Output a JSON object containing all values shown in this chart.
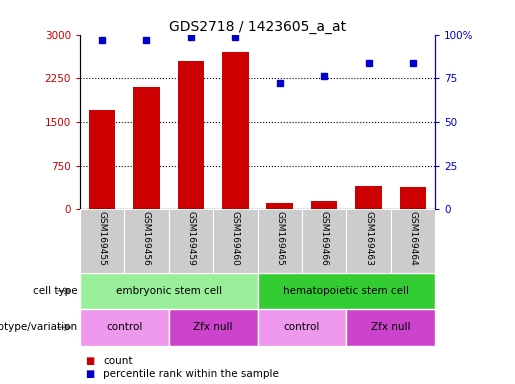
{
  "title": "GDS2718 / 1423605_a_at",
  "samples": [
    "GSM169455",
    "GSM169456",
    "GSM169459",
    "GSM169460",
    "GSM169465",
    "GSM169466",
    "GSM169463",
    "GSM169464"
  ],
  "counts": [
    1700,
    2100,
    2550,
    2700,
    100,
    150,
    400,
    390
  ],
  "percentiles": [
    97,
    97,
    98.5,
    98.5,
    72,
    76,
    84,
    84
  ],
  "ylim_left": [
    0,
    3000
  ],
  "ylim_right": [
    0,
    100
  ],
  "yticks_left": [
    0,
    750,
    1500,
    2250,
    3000
  ],
  "yticks_right": [
    0,
    25,
    50,
    75,
    100
  ],
  "ytick_labels_left": [
    "0",
    "750",
    "1500",
    "2250",
    "3000"
  ],
  "ytick_labels_right": [
    "0",
    "25",
    "50",
    "75",
    "100%"
  ],
  "bar_color": "#cc0000",
  "dot_color": "#0000cc",
  "cell_type_groups": [
    {
      "label": "embryonic stem cell",
      "start": 0,
      "end": 4,
      "color": "#99ee99"
    },
    {
      "label": "hematopoietic stem cell",
      "start": 4,
      "end": 8,
      "color": "#33cc33"
    }
  ],
  "genotype_groups": [
    {
      "label": "control",
      "start": 0,
      "end": 2,
      "color": "#ee99ee"
    },
    {
      "label": "Zfx null",
      "start": 2,
      "end": 4,
      "color": "#cc44cc"
    },
    {
      "label": "control",
      "start": 4,
      "end": 6,
      "color": "#ee99ee"
    },
    {
      "label": "Zfx null",
      "start": 6,
      "end": 8,
      "color": "#cc44cc"
    }
  ],
  "sample_bg_color": "#cccccc",
  "legend_count_color": "#cc0000",
  "legend_dot_color": "#0000cc"
}
